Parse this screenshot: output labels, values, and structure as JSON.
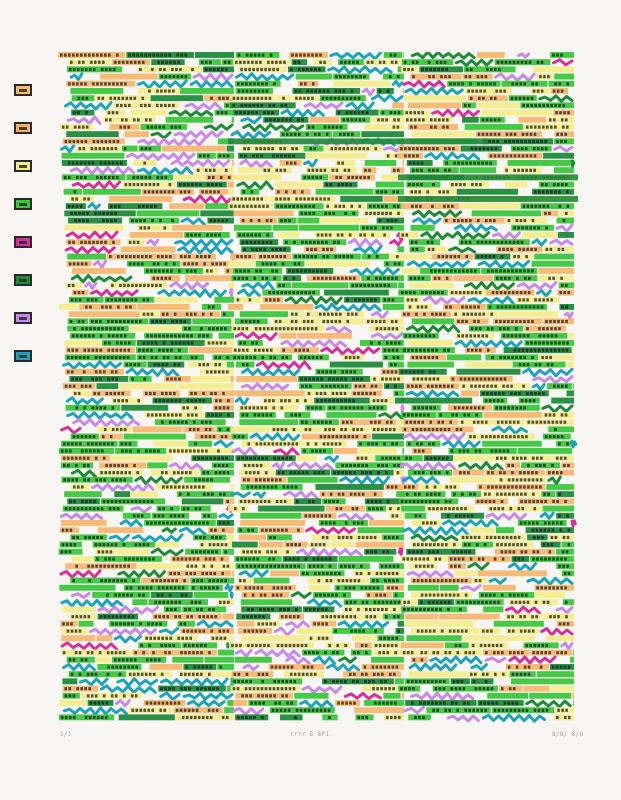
{
  "legend": {
    "swatches": [
      {
        "name": "pale-orange",
        "color": "#f6b870"
      },
      {
        "name": "light-orange",
        "color": "#f3b06a"
      },
      {
        "name": "pale-yellow",
        "color": "#f4ec8c"
      },
      {
        "name": "green",
        "color": "#3cc63c"
      },
      {
        "name": "magenta",
        "color": "#d6309a"
      },
      {
        "name": "dark-green",
        "color": "#1f8a3a"
      },
      {
        "name": "lavender",
        "color": "#c78ae6"
      },
      {
        "name": "cyan",
        "color": "#1fa3b8"
      }
    ]
  },
  "palette": {
    "yellow": "#f4ec8c",
    "orange": "#f6b870",
    "green": "#3cc63c",
    "dark_green": "#1f8a3a",
    "magenta": "#d6309a",
    "lavender": "#c78ae6",
    "cyan": "#1fa3b8",
    "ink": "#1a1a1a"
  },
  "annotations": {
    "edition": "1/1",
    "title": "rrrr 8 8P1",
    "signature": "8/8/ 8/8"
  }
}
